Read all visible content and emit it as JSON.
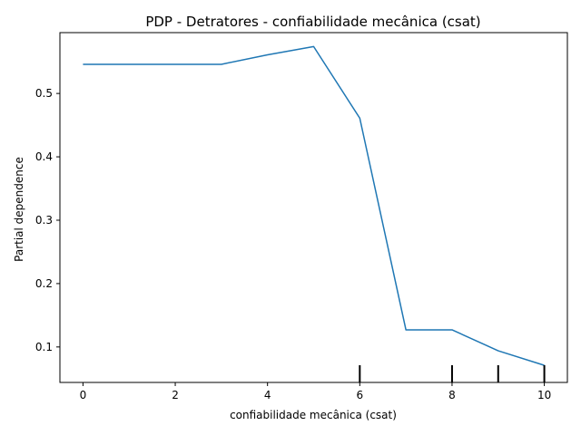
{
  "chart_data": {
    "type": "line",
    "title": "PDP - Detratores - confiabilidade mecânica (csat)",
    "xlabel": "confiabilidade mecânica (csat)",
    "ylabel": "Partial dependence",
    "xlim": [
      -0.5,
      10.5
    ],
    "ylim": [
      0.044,
      0.596
    ],
    "x_ticks": [
      0,
      2,
      4,
      6,
      8,
      10
    ],
    "y_ticks": [
      0.1,
      0.2,
      0.3,
      0.4,
      0.5
    ],
    "grid": false,
    "line_color": "#1f77b4",
    "series": [
      {
        "x": [
          0,
          1,
          2,
          3,
          4,
          5,
          6,
          7,
          8,
          9,
          10
        ],
        "values": [
          0.546,
          0.546,
          0.546,
          0.546,
          0.561,
          0.574,
          0.461,
          0.127,
          0.127,
          0.094,
          0.071
        ]
      }
    ],
    "rug": [
      6,
      8,
      9,
      10
    ]
  }
}
